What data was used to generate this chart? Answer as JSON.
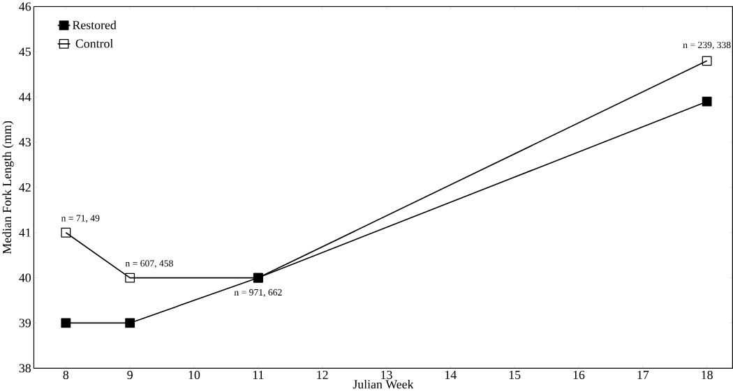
{
  "chart_data": {
    "type": "line",
    "xlabel": "Julian Week",
    "ylabel": "Median Fork Length (mm)",
    "x": [
      8,
      9,
      11,
      18
    ],
    "series": [
      {
        "name": "Restored",
        "color": "#000000",
        "values": [
          39,
          39,
          40,
          43.9
        ]
      },
      {
        "name": "Control",
        "color": "#000000",
        "values": [
          41,
          40,
          40,
          44.8
        ]
      }
    ],
    "xlim": [
      7.5,
      18.4
    ],
    "xticks": [
      8,
      9,
      10,
      11,
      12,
      13,
      14,
      15,
      16,
      17,
      18
    ],
    "ylim": [
      38,
      46
    ],
    "yticks": [
      38,
      39,
      40,
      41,
      42,
      43,
      44,
      45,
      46
    ],
    "annotations": [
      {
        "text": "n = 71, 49",
        "x": 8,
        "y": 41
      },
      {
        "text": "n = 607, 458",
        "x": 9,
        "y": 40
      },
      {
        "text": "n = 971, 662",
        "x": 11,
        "y": 40
      },
      {
        "text": "n = 239, 338",
        "x": 18,
        "y": 44.8
      }
    ],
    "marker": "square",
    "line_style": "solid",
    "legend": "top left",
    "grid": false
  }
}
